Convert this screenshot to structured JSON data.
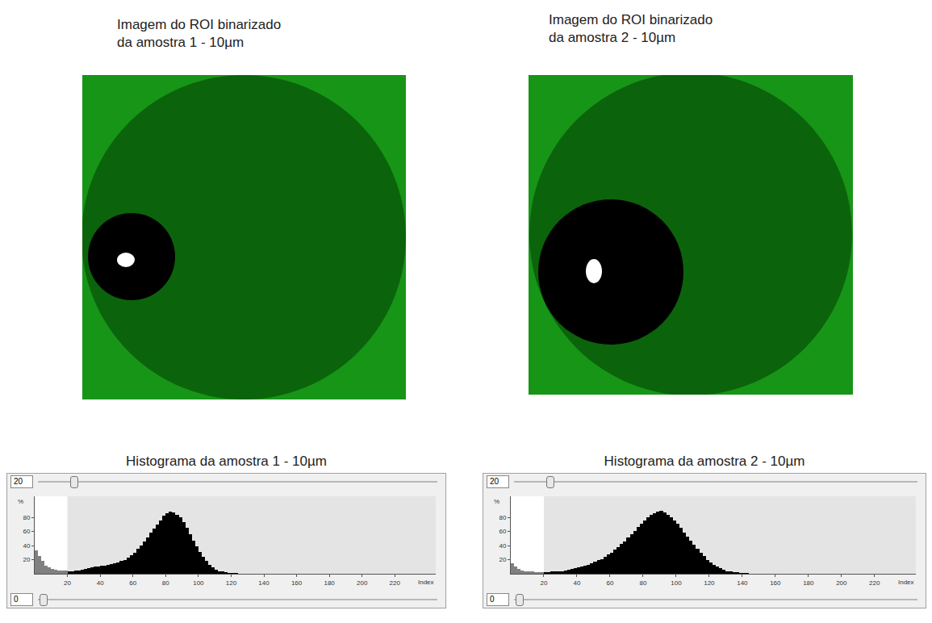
{
  "images": [
    {
      "title": [
        "Imagem do ROI binarizado",
        "da amostra 1 - 10µm"
      ]
    },
    {
      "title": [
        "Imagem do ROI binarizado",
        "da amostra 2 - 10µm"
      ]
    }
  ],
  "chart_data": [
    {
      "type": "histogram",
      "title": "Histograma da amostra 1 - 10µm",
      "xlabel": "Index",
      "ylabel": "%",
      "bins": [
        0,
        2,
        4,
        6,
        8,
        10,
        12,
        14,
        16,
        18,
        20,
        22,
        24,
        26,
        28,
        30,
        32,
        34,
        36,
        38,
        40,
        42,
        44,
        46,
        48,
        50,
        52,
        54,
        56,
        58,
        60,
        62,
        64,
        66,
        68,
        70,
        72,
        74,
        76,
        78,
        80,
        82,
        84,
        86,
        88,
        90,
        92,
        94,
        96,
        98,
        100,
        102,
        104,
        106,
        108,
        110,
        112,
        114,
        116,
        118,
        120,
        122,
        124,
        126,
        128,
        130
      ],
      "counts": [
        33,
        25,
        18,
        12,
        9,
        7,
        6,
        5,
        5,
        5,
        4,
        4,
        5,
        5,
        6,
        7,
        8,
        9,
        10,
        10,
        11,
        12,
        13,
        14,
        15,
        16,
        18,
        20,
        23,
        26,
        30,
        35,
        40,
        46,
        52,
        58,
        64,
        70,
        76,
        82,
        86,
        88,
        87,
        84,
        80,
        73,
        65,
        56,
        47,
        39,
        31,
        24,
        18,
        13,
        9,
        6,
        4,
        3,
        2,
        1,
        1,
        1,
        0.5,
        0.4,
        0.3
      ],
      "color": "#000000",
      "threshold": [
        0,
        20
      ],
      "xlim": [
        0,
        245
      ],
      "xticks": [
        20,
        40,
        60,
        80,
        100,
        120,
        140,
        160,
        180,
        200,
        220
      ],
      "ylim": [
        0,
        110
      ],
      "yticks": [
        20,
        40,
        60,
        80
      ]
    },
    {
      "type": "histogram",
      "title": "Histograma da amostra 2 - 10µm",
      "xlabel": "Index",
      "ylabel": "%",
      "bins": [
        0,
        2,
        4,
        6,
        8,
        10,
        12,
        14,
        16,
        18,
        20,
        22,
        24,
        26,
        28,
        30,
        32,
        34,
        36,
        38,
        40,
        42,
        44,
        46,
        48,
        50,
        52,
        54,
        56,
        58,
        60,
        62,
        64,
        66,
        68,
        70,
        72,
        74,
        76,
        78,
        80,
        82,
        84,
        86,
        88,
        90,
        92,
        94,
        96,
        98,
        100,
        102,
        104,
        106,
        108,
        110,
        112,
        114,
        116,
        118,
        120,
        122,
        124,
        126,
        128,
        130,
        132,
        134,
        136,
        138,
        140,
        142,
        144,
        146,
        148,
        150
      ],
      "counts": [
        15,
        10,
        7,
        5,
        4,
        3,
        3,
        2,
        2,
        2,
        2,
        2,
        3,
        3,
        4,
        4,
        5,
        6,
        7,
        8,
        9,
        10,
        12,
        13,
        15,
        17,
        19,
        21,
        24,
        27,
        30,
        34,
        38,
        42,
        46,
        51,
        56,
        61,
        66,
        71,
        76,
        80,
        84,
        86,
        88,
        89,
        87,
        84,
        80,
        76,
        71,
        65,
        59,
        53,
        47,
        41,
        35,
        30,
        25,
        20,
        16,
        13,
        10,
        8,
        6,
        4,
        3,
        2,
        2,
        1,
        1,
        1,
        0.5,
        0.5,
        0.3
      ],
      "color": "#000000",
      "threshold": [
        0,
        20
      ],
      "xlim": [
        0,
        245
      ],
      "xticks": [
        20,
        40,
        60,
        80,
        100,
        120,
        140,
        160,
        180,
        200,
        220
      ],
      "ylim": [
        0,
        110
      ],
      "yticks": [
        20,
        40,
        60,
        80
      ]
    }
  ]
}
